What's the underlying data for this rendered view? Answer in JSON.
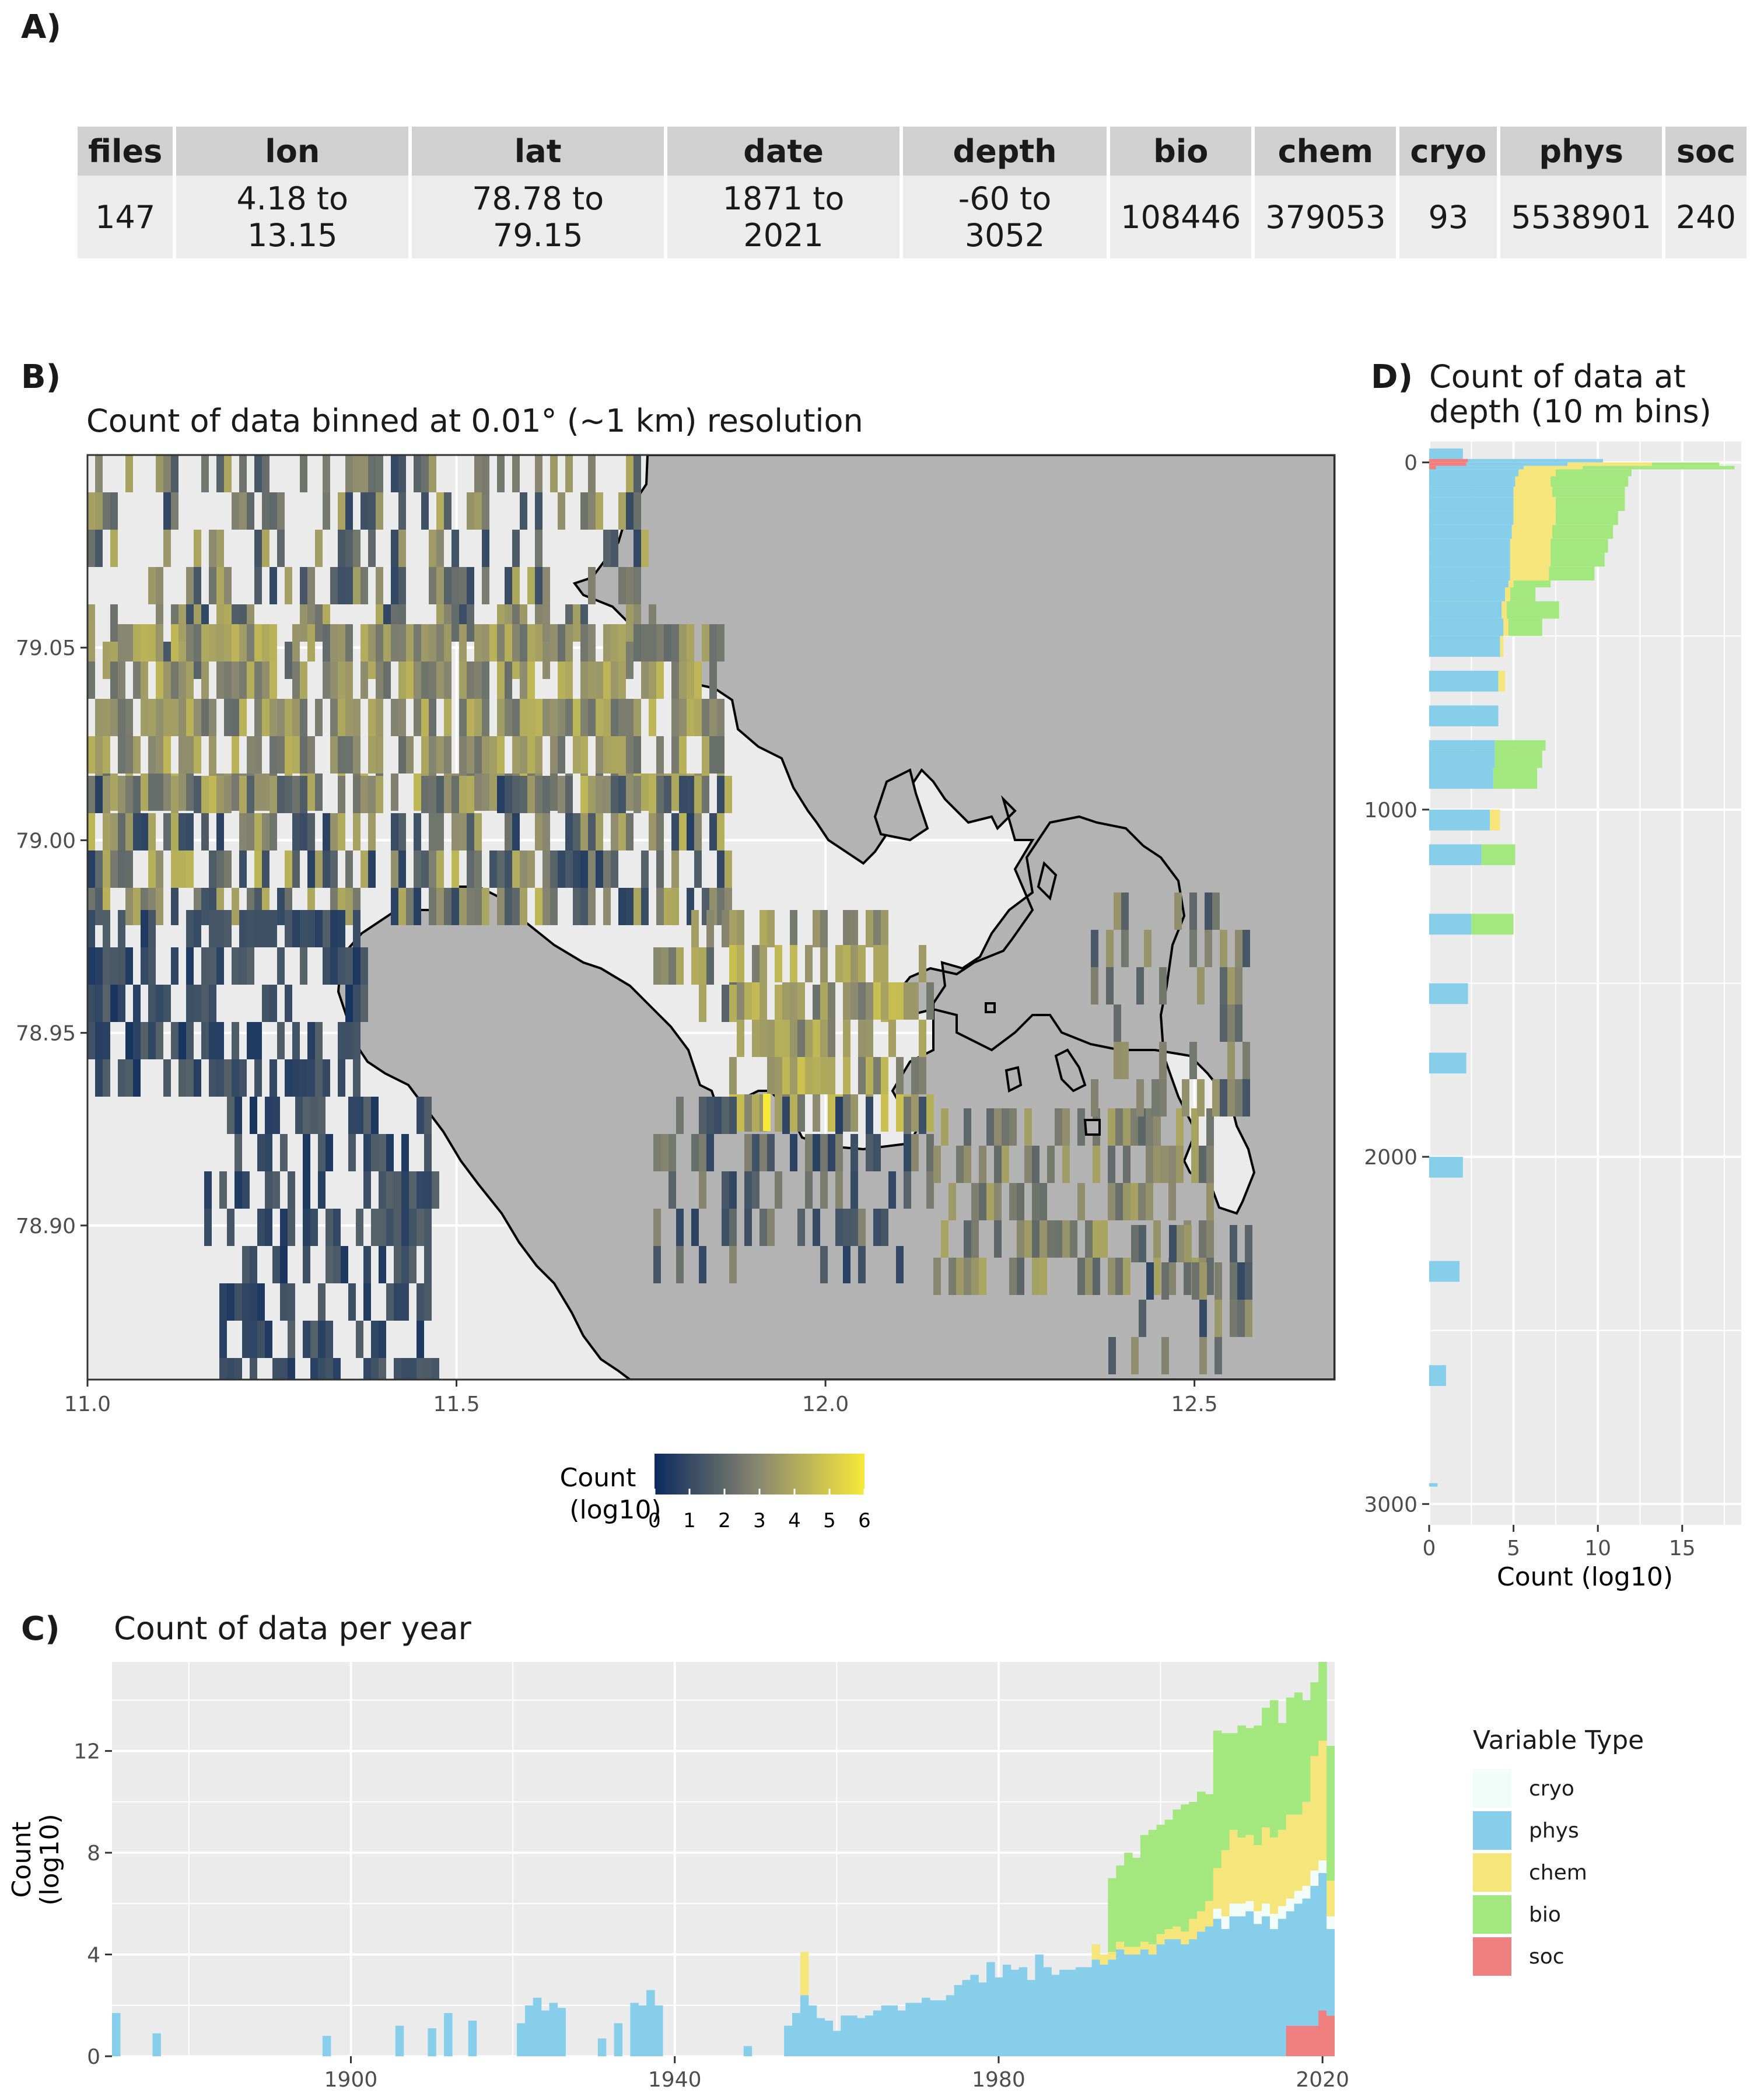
{
  "panels": {
    "a_letter": "A)",
    "b_letter": "B)",
    "c_letter": "C)",
    "d_letter": "D)"
  },
  "table": {
    "headers": [
      "files",
      "lon",
      "lat",
      "date",
      "depth",
      "bio",
      "chem",
      "cryo",
      "phys",
      "soc"
    ],
    "row": [
      "147",
      "4.18 to 13.15",
      "78.78 to 79.15",
      "1871 to 2021",
      "-60 to 3052",
      "108446",
      "379053",
      "93",
      "5538901",
      "240"
    ]
  },
  "colors": {
    "cryo": "#f2fcf9",
    "phys": "#87ceeb",
    "chem": "#f6e57a",
    "bio": "#a3e87e",
    "soc": "#f08080",
    "land": "#b3b3b3",
    "panel_bg": "#ebebeb",
    "sea": "#f2f2f2",
    "scale_low": "#0b2b5e",
    "scale_mid": "#8a8870",
    "scale_high": "#f7e93a"
  },
  "chart_data": [
    {
      "panel": "B",
      "type": "heatmap",
      "title": "Count of data binned at 0.01° (~1 km) resolution",
      "xlim": [
        11.0,
        12.69
      ],
      "ylim": [
        78.86,
        79.1
      ],
      "x_ticks": [
        "11.0",
        "11.5",
        "12.0",
        "12.5"
      ],
      "y_ticks": [
        "78.90",
        "78.95",
        "79.00",
        "79.05"
      ],
      "colorbar": {
        "title_line1": "Count",
        "title_line2": "(log10)",
        "range": [
          0,
          6
        ],
        "ticks": [
          "0",
          "1",
          "2",
          "3",
          "4",
          "5",
          "6"
        ]
      }
    },
    {
      "panel": "C",
      "type": "bar",
      "title": "Count of data per year",
      "ylabel_line1": "Count",
      "ylabel_line2": "(log10)",
      "xlim": [
        1871,
        2021
      ],
      "ylim": [
        0,
        15.5
      ],
      "x_ticks": [
        "1900",
        "1940",
        "1980",
        "2020"
      ],
      "y_ticks": [
        "0",
        "4",
        "8",
        "12"
      ],
      "stacked": true,
      "series_order": [
        "soc",
        "phys",
        "cryo",
        "chem",
        "bio"
      ],
      "points": [
        {
          "year": 1871,
          "phys": 1.7
        },
        {
          "year": 1876,
          "phys": 0.9
        },
        {
          "year": 1897,
          "phys": 0.8
        },
        {
          "year": 1906,
          "phys": 1.2
        },
        {
          "year": 1910,
          "phys": 1.1
        },
        {
          "year": 1912,
          "phys": 1.7
        },
        {
          "year": 1915,
          "phys": 1.4
        },
        {
          "year": 1921,
          "phys": 1.3
        },
        {
          "year": 1922,
          "phys": 2.0
        },
        {
          "year": 1923,
          "phys": 2.3
        },
        {
          "year": 1924,
          "phys": 1.8
        },
        {
          "year": 1925,
          "phys": 2.1
        },
        {
          "year": 1926,
          "phys": 1.9
        },
        {
          "year": 1931,
          "phys": 0.7
        },
        {
          "year": 1933,
          "phys": 1.3
        },
        {
          "year": 1935,
          "phys": 2.1
        },
        {
          "year": 1936,
          "phys": 2.0
        },
        {
          "year": 1937,
          "phys": 2.6
        },
        {
          "year": 1938,
          "phys": 2.0
        },
        {
          "year": 1949,
          "phys": 0.4
        },
        {
          "year": 1954,
          "phys": 1.2
        },
        {
          "year": 1955,
          "phys": 1.7
        },
        {
          "year": 1956,
          "phys": 2.4,
          "chem": 1.7
        },
        {
          "year": 1957,
          "phys": 2.0
        },
        {
          "year": 1958,
          "phys": 1.5
        },
        {
          "year": 1959,
          "phys": 1.4
        },
        {
          "year": 1960,
          "phys": 1.0
        },
        {
          "year": 1961,
          "phys": 1.6
        },
        {
          "year": 1962,
          "phys": 1.6
        },
        {
          "year": 1963,
          "phys": 1.5
        },
        {
          "year": 1964,
          "phys": 1.6
        },
        {
          "year": 1965,
          "phys": 1.8
        },
        {
          "year": 1966,
          "phys": 2.0
        },
        {
          "year": 1967,
          "phys": 2.0
        },
        {
          "year": 1968,
          "phys": 1.8
        },
        {
          "year": 1969,
          "phys": 2.1
        },
        {
          "year": 1970,
          "phys": 2.1
        },
        {
          "year": 1971,
          "phys": 2.3
        },
        {
          "year": 1972,
          "phys": 2.2
        },
        {
          "year": 1973,
          "phys": 2.2
        },
        {
          "year": 1974,
          "phys": 2.4
        },
        {
          "year": 1975,
          "phys": 2.8
        },
        {
          "year": 1976,
          "phys": 3.0
        },
        {
          "year": 1977,
          "phys": 3.2
        },
        {
          "year": 1978,
          "phys": 2.9
        },
        {
          "year": 1979,
          "phys": 3.7
        },
        {
          "year": 1980,
          "phys": 3.1
        },
        {
          "year": 1981,
          "phys": 3.6
        },
        {
          "year": 1982,
          "phys": 3.4
        },
        {
          "year": 1983,
          "phys": 3.5
        },
        {
          "year": 1984,
          "phys": 3.0
        },
        {
          "year": 1985,
          "phys": 4.0
        },
        {
          "year": 1986,
          "phys": 3.5
        },
        {
          "year": 1987,
          "phys": 3.2
        },
        {
          "year": 1988,
          "phys": 3.4
        },
        {
          "year": 1989,
          "phys": 3.4
        },
        {
          "year": 1990,
          "phys": 3.5
        },
        {
          "year": 1991,
          "phys": 3.5
        },
        {
          "year": 1992,
          "phys": 3.8,
          "chem": 0.6
        },
        {
          "year": 1993,
          "phys": 3.6,
          "chem": 0.4
        },
        {
          "year": 1994,
          "phys": 3.8,
          "chem": 0.3,
          "bio": 2.9
        },
        {
          "year": 1995,
          "phys": 4.2,
          "chem": 0.3,
          "bio": 3.0
        },
        {
          "year": 1996,
          "phys": 4.0,
          "chem": 0.3,
          "bio": 3.7
        },
        {
          "year": 1997,
          "phys": 4.0,
          "chem": 0.3,
          "bio": 3.5
        },
        {
          "year": 1998,
          "phys": 4.2,
          "chem": 0.3,
          "bio": 4.2
        },
        {
          "year": 1999,
          "phys": 4.0,
          "chem": 0.4,
          "bio": 4.5
        },
        {
          "year": 2000,
          "phys": 4.4,
          "chem": 0.4,
          "bio": 4.3
        },
        {
          "year": 2001,
          "phys": 4.6,
          "chem": 0.4,
          "bio": 4.3
        },
        {
          "year": 2002,
          "phys": 4.6,
          "chem": 0.5,
          "bio": 4.6
        },
        {
          "year": 2003,
          "phys": 4.4,
          "chem": 0.5,
          "bio": 5.0
        },
        {
          "year": 2004,
          "phys": 4.6,
          "chem": 0.8,
          "bio": 4.6
        },
        {
          "year": 2005,
          "phys": 4.9,
          "chem": 0.8,
          "bio": 4.7
        },
        {
          "year": 2006,
          "phys": 5.1,
          "chem": 1.0,
          "bio": 4.2
        },
        {
          "year": 2007,
          "phys": 5.4,
          "cryo": 0.4,
          "chem": 1.6,
          "bio": 5.4
        },
        {
          "year": 2008,
          "phys": 5.0,
          "cryo": 0.5,
          "chem": 2.6,
          "bio": 4.6
        },
        {
          "year": 2009,
          "phys": 5.5,
          "cryo": 0.5,
          "chem": 2.9,
          "bio": 3.8
        },
        {
          "year": 2010,
          "phys": 5.5,
          "cryo": 0.5,
          "chem": 2.6,
          "bio": 4.4
        },
        {
          "year": 2011,
          "phys": 5.7,
          "cryo": 0.4,
          "chem": 2.6,
          "bio": 4.2
        },
        {
          "year": 2012,
          "phys": 5.2,
          "cryo": 0.5,
          "chem": 2.6,
          "bio": 4.7
        },
        {
          "year": 2013,
          "phys": 5.5,
          "cryo": 0.5,
          "chem": 3.0,
          "bio": 4.7
        },
        {
          "year": 2014,
          "phys": 5.0,
          "cryo": 0.6,
          "chem": 3.0,
          "bio": 5.4
        },
        {
          "year": 2015,
          "phys": 5.4,
          "cryo": 0.5,
          "chem": 3.0,
          "bio": 4.2
        },
        {
          "year": 2016,
          "soc": 1.2,
          "phys": 4.5,
          "cryo": 0.5,
          "chem": 3.3,
          "bio": 4.6
        },
        {
          "year": 2017,
          "soc": 1.2,
          "phys": 4.8,
          "cryo": 0.5,
          "chem": 3.0,
          "bio": 4.8
        },
        {
          "year": 2018,
          "soc": 1.2,
          "phys": 5.0,
          "cryo": 0.5,
          "chem": 3.3,
          "bio": 4.0
        },
        {
          "year": 2019,
          "soc": 1.2,
          "phys": 5.5,
          "cryo": 0.6,
          "chem": 4.5,
          "bio": 2.9
        },
        {
          "year": 2020,
          "soc": 1.8,
          "phys": 5.4,
          "cryo": 0.5,
          "chem": 4.7,
          "bio": 3.2
        },
        {
          "year": 2021,
          "soc": 1.6,
          "phys": 3.4,
          "cryo": 0.5,
          "chem": 1.4,
          "bio": 5.3
        }
      ]
    },
    {
      "panel": "D",
      "type": "bar",
      "orientation": "horizontal",
      "title_line1": "Count of data at",
      "title_line2": "depth (10 m bins)",
      "xlabel": "Count (log10)",
      "xlim": [
        0,
        18.5
      ],
      "ylim": [
        3060,
        -60
      ],
      "x_ticks": [
        "0",
        "5",
        "10",
        "15"
      ],
      "y_ticks": [
        "0",
        "1000",
        "2000",
        "3000"
      ],
      "stacked": true,
      "series_order": [
        "soc",
        "phys",
        "cryo",
        "chem",
        "bio"
      ],
      "points": [
        {
          "depth": -40,
          "phys": 2.0
        },
        {
          "depth": -10,
          "soc": 2.3,
          "phys": 8.0
        },
        {
          "depth": 0,
          "soc": 2.2,
          "phys": 6.0,
          "chem": 5.0,
          "bio": 4.0
        },
        {
          "depth": 10,
          "soc": 0.4,
          "phys": 5.2,
          "chem": 3.5,
          "bio": 9.0
        },
        {
          "depth": 20,
          "phys": 5.3,
          "chem": 2.2,
          "bio": 4.5
        },
        {
          "depth": 40,
          "phys": 5.1,
          "chem": 2.1,
          "bio": 4.6
        },
        {
          "depth": 70,
          "phys": 5.0,
          "chem": 2.3,
          "bio": 4.3
        },
        {
          "depth": 100,
          "phys": 5.0,
          "chem": 2.5,
          "bio": 4.1
        },
        {
          "depth": 140,
          "phys": 5.0,
          "chem": 2.5,
          "bio": 3.7
        },
        {
          "depth": 180,
          "phys": 4.9,
          "chem": 2.4,
          "bio": 3.6
        },
        {
          "depth": 220,
          "phys": 4.8,
          "chem": 2.4,
          "bio": 3.4
        },
        {
          "depth": 260,
          "phys": 4.8,
          "chem": 2.4,
          "bio": 3.2
        },
        {
          "depth": 300,
          "phys": 4.8,
          "chem": 2.3,
          "bio": 2.7
        },
        {
          "depth": 340,
          "phys": 4.7,
          "chem": 0.3,
          "bio": 2.2
        },
        {
          "depth": 360,
          "phys": 4.5,
          "chem": 0.3,
          "bio": 1.5
        },
        {
          "depth": 400,
          "phys": 4.3,
          "chem": 0.3,
          "bio": 3.1
        },
        {
          "depth": 450,
          "phys": 4.4,
          "chem": 0.3,
          "bio": 2.0
        },
        {
          "depth": 500,
          "phys": 4.2,
          "chem": 0.2
        },
        {
          "depth": 600,
          "phys": 4.1,
          "chem": 0.4
        },
        {
          "depth": 700,
          "phys": 4.1
        },
        {
          "depth": 800,
          "phys": 3.9,
          "bio": 3.0
        },
        {
          "depth": 830,
          "phys": 3.9,
          "bio": 2.8
        },
        {
          "depth": 880,
          "phys": 3.8,
          "bio": 2.6
        },
        {
          "depth": 1000,
          "phys": 3.6,
          "chem": 0.6
        },
        {
          "depth": 1100,
          "phys": 3.1,
          "bio": 2.0
        },
        {
          "depth": 1300,
          "phys": 2.5,
          "bio": 2.5
        },
        {
          "depth": 1500,
          "phys": 2.3
        },
        {
          "depth": 1700,
          "phys": 2.2
        },
        {
          "depth": 2000,
          "phys": 2.0
        },
        {
          "depth": 2300,
          "phys": 1.8
        },
        {
          "depth": 2600,
          "phys": 1.0
        },
        {
          "depth": 2940,
          "phys": 0.5
        }
      ]
    }
  ],
  "legend": {
    "title": "Variable Type",
    "items": [
      {
        "key": "cryo",
        "label": "cryo"
      },
      {
        "key": "phys",
        "label": "phys"
      },
      {
        "key": "chem",
        "label": "chem"
      },
      {
        "key": "bio",
        "label": "bio"
      },
      {
        "key": "soc",
        "label": "soc"
      }
    ]
  }
}
